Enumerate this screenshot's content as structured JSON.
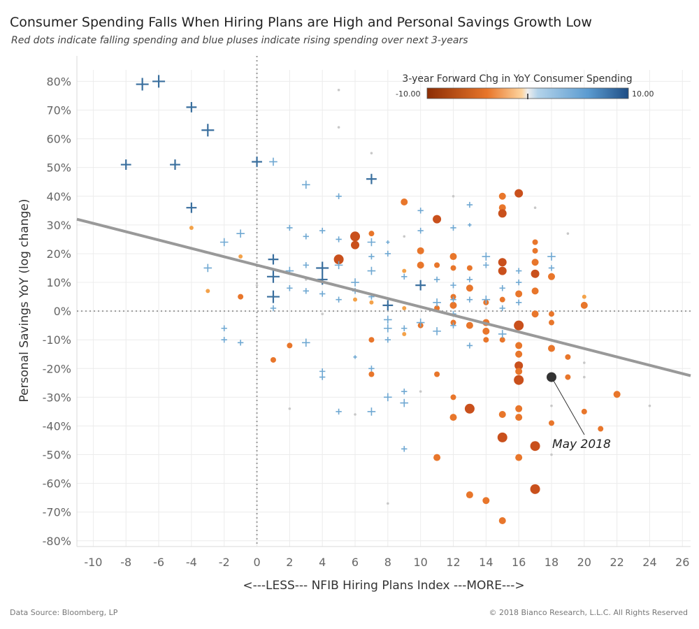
{
  "title": "Consumer Spending Falls When Hiring Plans are High and Personal Savings Growth Low",
  "subtitle": "Red dots indicate falling spending and blue pluses indicate rising spending over next 3-years",
  "footer": {
    "source": "Data Source: Bloomberg, LP",
    "copyright": "© 2018 Bianco Research, L.L.C. All Rights Reserved"
  },
  "colors": {
    "falling": "#e8762b",
    "falling_dark": "#c9501c",
    "rising": "#6fa8d2",
    "rising_dark": "#3a6f9e",
    "neutral": "#c8c8c8",
    "trend": "#999999",
    "highlight": "#333333"
  },
  "chart_data": {
    "type": "scatter",
    "xlabel": "<---LESS--- NFIB Hiring Plans Index ---MORE--->",
    "ylabel": "Personal Savings YoY (log change)",
    "xlim": [
      -11,
      26.5
    ],
    "ylim": [
      -82,
      84
    ],
    "x_ticks": [
      -10,
      -8,
      -6,
      -4,
      -2,
      0,
      2,
      4,
      6,
      8,
      10,
      12,
      14,
      16,
      18,
      20,
      22,
      24,
      26
    ],
    "y_ticks": [
      80,
      70,
      60,
      50,
      40,
      30,
      20,
      10,
      0,
      -10,
      -20,
      -30,
      -40,
      -50,
      -60,
      -70,
      -80
    ],
    "y_tick_labels": [
      "80%",
      "70%",
      "60%",
      "50%",
      "40%",
      "30%",
      "20%",
      "10%",
      "0%",
      "-10%",
      "-20%",
      "-30%",
      "-40%",
      "-50%",
      "-60%",
      "-70%",
      "-80%"
    ],
    "grid": true,
    "reference_lines": {
      "x": 0,
      "y": 0
    },
    "trend_line": {
      "x": [
        -11,
        26.5
      ],
      "y": [
        32,
        -22.5
      ]
    },
    "legend": {
      "title": "3-year Forward Chg in YoY Consumer Spending",
      "min_label": "-10.00",
      "max_label": "10.00",
      "placement": "top-right"
    },
    "annotation": {
      "label": "May 2018",
      "x": 18,
      "y": -23
    },
    "rising_points": [
      {
        "x": -7,
        "y": 79,
        "s": 5
      },
      {
        "x": -6,
        "y": 80,
        "s": 5
      },
      {
        "x": -4,
        "y": 71,
        "s": 4
      },
      {
        "x": -3,
        "y": 63,
        "s": 5
      },
      {
        "x": -8,
        "y": 51,
        "s": 4
      },
      {
        "x": -5,
        "y": 51,
        "s": 4
      },
      {
        "x": 0,
        "y": 52,
        "s": 4
      },
      {
        "x": 1,
        "y": 52,
        "s": 3
      },
      {
        "x": -4,
        "y": 36,
        "s": 4
      },
      {
        "x": 3,
        "y": 44,
        "s": 3
      },
      {
        "x": 5,
        "y": 40,
        "s": 2
      },
      {
        "x": 7,
        "y": 46,
        "s": 4
      },
      {
        "x": 10,
        "y": 35,
        "s": 2
      },
      {
        "x": 13,
        "y": 37,
        "s": 2
      },
      {
        "x": 2,
        "y": 29,
        "s": 2
      },
      {
        "x": -1,
        "y": 27,
        "s": 3
      },
      {
        "x": -2,
        "y": 24,
        "s": 3
      },
      {
        "x": 3,
        "y": 26,
        "s": 2
      },
      {
        "x": 4,
        "y": 28,
        "s": 2
      },
      {
        "x": 5,
        "y": 25,
        "s": 2
      },
      {
        "x": 7,
        "y": 24,
        "s": 3
      },
      {
        "x": 8,
        "y": 24,
        "s": 1
      },
      {
        "x": 10,
        "y": 28,
        "s": 2
      },
      {
        "x": 12,
        "y": 29,
        "s": 2
      },
      {
        "x": 13,
        "y": 30,
        "s": 1
      },
      {
        "x": -3,
        "y": 15,
        "s": 3
      },
      {
        "x": 1,
        "y": 18,
        "s": 4
      },
      {
        "x": 1,
        "y": 12,
        "s": 5
      },
      {
        "x": 2,
        "y": 14,
        "s": 3
      },
      {
        "x": 3,
        "y": 16,
        "s": 2
      },
      {
        "x": 4,
        "y": 15,
        "s": 5
      },
      {
        "x": 4,
        "y": 11,
        "s": 4
      },
      {
        "x": 5,
        "y": 16,
        "s": 3
      },
      {
        "x": 6,
        "y": 10,
        "s": 3
      },
      {
        "x": 7,
        "y": 14,
        "s": 3
      },
      {
        "x": 7,
        "y": 19,
        "s": 2
      },
      {
        "x": 8,
        "y": 20,
        "s": 2
      },
      {
        "x": 9,
        "y": 12,
        "s": 2
      },
      {
        "x": 10,
        "y": 9,
        "s": 4
      },
      {
        "x": 11,
        "y": 11,
        "s": 2
      },
      {
        "x": 12,
        "y": 9,
        "s": 2
      },
      {
        "x": 13,
        "y": 11,
        "s": 2
      },
      {
        "x": 14,
        "y": 19,
        "s": 3
      },
      {
        "x": 14,
        "y": 16,
        "s": 2
      },
      {
        "x": 15,
        "y": 8,
        "s": 2
      },
      {
        "x": 16,
        "y": 14,
        "s": 2
      },
      {
        "x": 16,
        "y": 10,
        "s": 2
      },
      {
        "x": 18,
        "y": 19,
        "s": 3
      },
      {
        "x": 18,
        "y": 15,
        "s": 2
      },
      {
        "x": 2,
        "y": 8,
        "s": 2
      },
      {
        "x": 3,
        "y": 7,
        "s": 2
      },
      {
        "x": 4,
        "y": 6,
        "s": 2
      },
      {
        "x": 1,
        "y": 5,
        "s": 5
      },
      {
        "x": 1,
        "y": 1,
        "s": 2
      },
      {
        "x": 5,
        "y": 4,
        "s": 2
      },
      {
        "x": 7,
        "y": 5,
        "s": 2
      },
      {
        "x": 8,
        "y": 2,
        "s": 4
      },
      {
        "x": 8,
        "y": -3,
        "s": 3
      },
      {
        "x": 8,
        "y": -6,
        "s": 3
      },
      {
        "x": 8,
        "y": -10,
        "s": 2
      },
      {
        "x": 9,
        "y": -6,
        "s": 2
      },
      {
        "x": 10,
        "y": -4,
        "s": 3
      },
      {
        "x": 11,
        "y": -7,
        "s": 3
      },
      {
        "x": 11,
        "y": 3,
        "s": 3
      },
      {
        "x": 12,
        "y": 4,
        "s": 2
      },
      {
        "x": 13,
        "y": 4,
        "s": 2
      },
      {
        "x": 14,
        "y": 4,
        "s": 3
      },
      {
        "x": 15,
        "y": 1,
        "s": 2
      },
      {
        "x": 16,
        "y": 3,
        "s": 2
      },
      {
        "x": 15,
        "y": -8,
        "s": 3
      },
      {
        "x": 13,
        "y": -12,
        "s": 2
      },
      {
        "x": 12,
        "y": -5,
        "s": 2
      },
      {
        "x": -2,
        "y": -6,
        "s": 2
      },
      {
        "x": -2,
        "y": -10,
        "s": 2
      },
      {
        "x": -1,
        "y": -11,
        "s": 2
      },
      {
        "x": 3,
        "y": -11,
        "s": 3
      },
      {
        "x": 4,
        "y": -21,
        "s": 2
      },
      {
        "x": 4,
        "y": -23,
        "s": 2
      },
      {
        "x": 6,
        "y": -16,
        "s": 1
      },
      {
        "x": 7,
        "y": -20,
        "s": 2
      },
      {
        "x": 7,
        "y": -35,
        "s": 3
      },
      {
        "x": 8,
        "y": -30,
        "s": 3
      },
      {
        "x": 9,
        "y": -32,
        "s": 3
      },
      {
        "x": 5,
        "y": -35,
        "s": 2
      },
      {
        "x": 9,
        "y": -28,
        "s": 2
      },
      {
        "x": 9,
        "y": -48,
        "s": 2
      },
      {
        "x": 6,
        "y": 7,
        "s": 2
      },
      {
        "x": 12,
        "y": -1,
        "s": 2
      }
    ],
    "falling_points": [
      {
        "x": 16,
        "y": 41,
        "s": 6
      },
      {
        "x": 15,
        "y": 40,
        "s": 5
      },
      {
        "x": 15,
        "y": 36,
        "s": 5
      },
      {
        "x": 15,
        "y": 34,
        "s": 6
      },
      {
        "x": 9,
        "y": 38,
        "s": 5
      },
      {
        "x": 11,
        "y": 32,
        "s": 6
      },
      {
        "x": 6,
        "y": 26,
        "s": 7
      },
      {
        "x": 6,
        "y": 23,
        "s": 6
      },
      {
        "x": 7,
        "y": 27,
        "s": 4
      },
      {
        "x": 5,
        "y": 18,
        "s": 7
      },
      {
        "x": 10,
        "y": 21,
        "s": 5
      },
      {
        "x": 10,
        "y": 16,
        "s": 5
      },
      {
        "x": 11,
        "y": 16,
        "s": 4
      },
      {
        "x": 12,
        "y": 19,
        "s": 5
      },
      {
        "x": 12,
        "y": 15,
        "s": 4
      },
      {
        "x": 13,
        "y": 15,
        "s": 4
      },
      {
        "x": 15,
        "y": 17,
        "s": 6
      },
      {
        "x": 15,
        "y": 14,
        "s": 6
      },
      {
        "x": 17,
        "y": 24,
        "s": 4
      },
      {
        "x": 17,
        "y": 21,
        "s": 4
      },
      {
        "x": 17,
        "y": 17,
        "s": 5
      },
      {
        "x": 17,
        "y": 13,
        "s": 6
      },
      {
        "x": 18,
        "y": 12,
        "s": 5
      },
      {
        "x": 17,
        "y": 7,
        "s": 5
      },
      {
        "x": 16,
        "y": 6,
        "s": 5
      },
      {
        "x": 13,
        "y": 8,
        "s": 5
      },
      {
        "x": 12,
        "y": 5,
        "s": 4
      },
      {
        "x": 12,
        "y": 2,
        "s": 5
      },
      {
        "x": 11,
        "y": 1,
        "s": 4
      },
      {
        "x": 14,
        "y": 3,
        "s": 4
      },
      {
        "x": 15,
        "y": 4,
        "s": 4
      },
      {
        "x": 20,
        "y": 2,
        "s": 5
      },
      {
        "x": 17,
        "y": -1,
        "s": 5
      },
      {
        "x": 18,
        "y": -1,
        "s": 4
      },
      {
        "x": 18,
        "y": -4,
        "s": 4
      },
      {
        "x": 16,
        "y": -5,
        "s": 7
      },
      {
        "x": 13,
        "y": -5,
        "s": 5
      },
      {
        "x": 14,
        "y": -4,
        "s": 5
      },
      {
        "x": 14,
        "y": -7,
        "s": 5
      },
      {
        "x": 14,
        "y": -10,
        "s": 4
      },
      {
        "x": 15,
        "y": -10,
        "s": 4
      },
      {
        "x": 10,
        "y": -5,
        "s": 4
      },
      {
        "x": 12,
        "y": -4,
        "s": 4
      },
      {
        "x": 7,
        "y": -10,
        "s": 4
      },
      {
        "x": 9,
        "y": -8,
        "s": 3
      },
      {
        "x": 16,
        "y": -12,
        "s": 5
      },
      {
        "x": 16,
        "y": -15,
        "s": 5
      },
      {
        "x": 18,
        "y": -13,
        "s": 5
      },
      {
        "x": 19,
        "y": -16,
        "s": 4
      },
      {
        "x": 16,
        "y": -19,
        "s": 6
      },
      {
        "x": 16,
        "y": -21,
        "s": 5
      },
      {
        "x": 16,
        "y": -24,
        "s": 7
      },
      {
        "x": 19,
        "y": -23,
        "s": 4
      },
      {
        "x": 2,
        "y": -12,
        "s": 4
      },
      {
        "x": 1,
        "y": -17,
        "s": 4
      },
      {
        "x": 7,
        "y": -22,
        "s": 4
      },
      {
        "x": 11,
        "y": -22,
        "s": 4
      },
      {
        "x": 12,
        "y": -30,
        "s": 4
      },
      {
        "x": 12,
        "y": -37,
        "s": 5
      },
      {
        "x": 13,
        "y": -34,
        "s": 7
      },
      {
        "x": 15,
        "y": -36,
        "s": 5
      },
      {
        "x": 16,
        "y": -34,
        "s": 5
      },
      {
        "x": 16,
        "y": -37,
        "s": 5
      },
      {
        "x": 18,
        "y": -39,
        "s": 4
      },
      {
        "x": 20,
        "y": -35,
        "s": 4
      },
      {
        "x": 21,
        "y": -41,
        "s": 4
      },
      {
        "x": 22,
        "y": -29,
        "s": 5
      },
      {
        "x": 15,
        "y": -44,
        "s": 7
      },
      {
        "x": 17,
        "y": -47,
        "s": 7
      },
      {
        "x": 11,
        "y": -51,
        "s": 5
      },
      {
        "x": 16,
        "y": -51,
        "s": 5
      },
      {
        "x": 17,
        "y": -62,
        "s": 7
      },
      {
        "x": 13,
        "y": -64,
        "s": 5
      },
      {
        "x": 14,
        "y": -66,
        "s": 5
      },
      {
        "x": 15,
        "y": -73,
        "s": 5
      },
      {
        "x": -4,
        "y": 29,
        "s": 3
      },
      {
        "x": -1,
        "y": 19,
        "s": 3
      },
      {
        "x": -1,
        "y": 5,
        "s": 4
      },
      {
        "x": -3,
        "y": 7,
        "s": 3
      },
      {
        "x": 9,
        "y": 14,
        "s": 3
      },
      {
        "x": 9,
        "y": 1,
        "s": 3
      },
      {
        "x": 7,
        "y": 3,
        "s": 3
      },
      {
        "x": 6,
        "y": 4,
        "s": 3
      },
      {
        "x": 20,
        "y": 5,
        "s": 3
      }
    ],
    "neutral_points": [
      {
        "x": 5,
        "y": 77
      },
      {
        "x": 5,
        "y": 64
      },
      {
        "x": 7,
        "y": 55
      },
      {
        "x": 12,
        "y": 40
      },
      {
        "x": 17,
        "y": 36
      },
      {
        "x": 19,
        "y": 27
      },
      {
        "x": 9,
        "y": 26
      },
      {
        "x": 0,
        "y": 9
      },
      {
        "x": 6,
        "y": 0
      },
      {
        "x": 4,
        "y": -1
      },
      {
        "x": 6,
        "y": -36
      },
      {
        "x": 2,
        "y": -34
      },
      {
        "x": 10,
        "y": -28
      },
      {
        "x": 8,
        "y": -67
      },
      {
        "x": 24,
        "y": -33
      },
      {
        "x": 18,
        "y": -22
      },
      {
        "x": 20,
        "y": -18
      },
      {
        "x": 18,
        "y": -33
      },
      {
        "x": 18,
        "y": -50
      },
      {
        "x": 20,
        "y": -23
      },
      {
        "x": 3,
        "y": 11
      },
      {
        "x": 14,
        "y": 1
      }
    ]
  }
}
